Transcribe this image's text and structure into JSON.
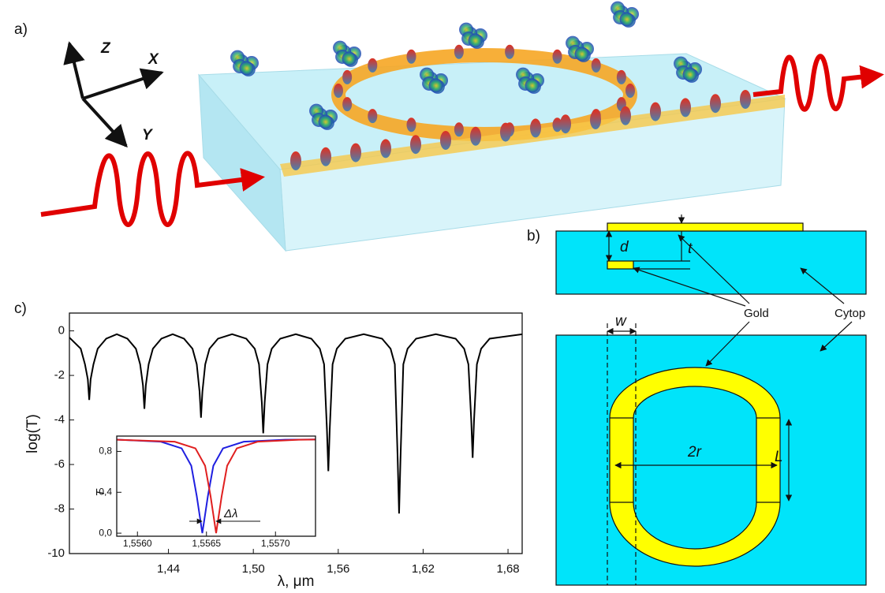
{
  "figure": {
    "panel_labels": [
      "a)",
      "b)",
      "c)"
    ],
    "axes": [
      "Z",
      "X",
      "Y"
    ],
    "schematic": {
      "d": "d",
      "t": "t",
      "gold": "Gold",
      "cytop": "Cytop",
      "w": "w",
      "two_r": "2r",
      "L": "L"
    }
  },
  "chart_data": [
    {
      "type": "line",
      "x_label": "λ, μm",
      "y_label": "log(T)",
      "color": "#000000",
      "x": [
        1.37,
        1.378,
        1.381,
        1.383,
        1.384,
        1.385,
        1.387,
        1.39,
        1.396,
        1.4035,
        1.411,
        1.417,
        1.42,
        1.422,
        1.423,
        1.424,
        1.426,
        1.429,
        1.435,
        1.443,
        1.451,
        1.457,
        1.46,
        1.462,
        1.463,
        1.464,
        1.466,
        1.469,
        1.475,
        1.485,
        1.495,
        1.501,
        1.504,
        1.506,
        1.507,
        1.508,
        1.51,
        1.513,
        1.519,
        1.53,
        1.541,
        1.547,
        1.55,
        1.552,
        1.553,
        1.554,
        1.556,
        1.559,
        1.565,
        1.578,
        1.591,
        1.597,
        1.6,
        1.602,
        1.603,
        1.604,
        1.606,
        1.609,
        1.615,
        1.629,
        1.643,
        1.649,
        1.652,
        1.654,
        1.655,
        1.656,
        1.658,
        1.661,
        1.667,
        1.69
      ],
      "values": [
        -0.3,
        -0.8,
        -1.5,
        -2.17,
        -3.1,
        -2.17,
        -1.5,
        -0.8,
        -0.35,
        -0.15,
        -0.35,
        -0.8,
        -1.5,
        -2.45,
        -3.5,
        -2.45,
        -1.5,
        -0.8,
        -0.35,
        -0.15,
        -0.35,
        -0.8,
        -1.5,
        -2.73,
        -3.9,
        -2.73,
        -1.5,
        -0.8,
        -0.35,
        -0.15,
        -0.35,
        -0.8,
        -1.5,
        -3.22,
        -4.6,
        -3.22,
        -1.5,
        -0.8,
        -0.35,
        -0.15,
        -0.35,
        -0.8,
        -1.5,
        -4.41,
        -6.3,
        -4.41,
        -1.5,
        -0.8,
        -0.35,
        -0.15,
        -0.35,
        -0.8,
        -1.5,
        -5.74,
        -8.2,
        -5.74,
        -1.5,
        -0.8,
        -0.35,
        -0.15,
        -0.35,
        -0.8,
        -1.5,
        -3.99,
        -5.7,
        -3.99,
        -1.5,
        -0.8,
        -0.35,
        -0.15
      ],
      "xlim": [
        1.37,
        1.69
      ],
      "xticks": [
        {
          "value": 1.44,
          "label": "1,44"
        },
        {
          "value": 1.5,
          "label": "1,50"
        },
        {
          "value": 1.56,
          "label": "1,56"
        },
        {
          "value": 1.62,
          "label": "1,62"
        },
        {
          "value": 1.68,
          "label": "1,68"
        }
      ],
      "ylim": [
        -10,
        0.8
      ],
      "yticks": [
        0,
        -2,
        -4,
        -6,
        -8,
        -10
      ]
    },
    {
      "type": "line",
      "y_label": "T",
      "annotation": "Δλ",
      "series": [
        {
          "color": "#1f1fe0",
          "x": [
            1.55585,
            1.55617,
            1.55632,
            1.55639,
            1.55643,
            1.55647,
            1.55651,
            1.55655,
            1.55662,
            1.55677,
            1.55707,
            1.55729
          ],
          "values": [
            0.915,
            0.895,
            0.83,
            0.66,
            0.36,
            0.0,
            0.36,
            0.66,
            0.83,
            0.895,
            0.914,
            0.917
          ]
        },
        {
          "color": "#e01f1f",
          "x": [
            1.55585,
            1.55627,
            1.55642,
            1.55649,
            1.55653,
            1.55657,
            1.55661,
            1.55665,
            1.55672,
            1.55687,
            1.55717,
            1.55729
          ],
          "values": [
            0.914,
            0.895,
            0.83,
            0.66,
            0.36,
            0.0,
            0.36,
            0.66,
            0.83,
            0.895,
            0.914,
            0.916
          ]
        }
      ],
      "xlim": [
        1.55585,
        1.55729
      ],
      "xticks": [
        {
          "value": 1.556,
          "label": "1,5560"
        },
        {
          "value": 1.5565,
          "label": "1,5565"
        },
        {
          "value": 1.557,
          "label": "1,5570"
        }
      ],
      "ylim": [
        -0.03,
        0.95
      ],
      "yticks": [
        {
          "value": 0.0,
          "label": "0,0"
        },
        {
          "value": 0.4,
          "label": "0,4"
        },
        {
          "value": 0.8,
          "label": "0,8"
        }
      ]
    }
  ]
}
